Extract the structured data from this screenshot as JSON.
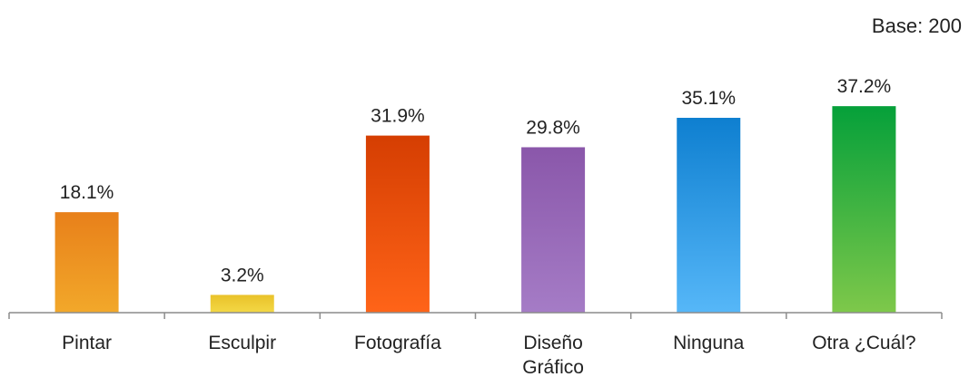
{
  "base_note": "Base: 200",
  "chart_data": {
    "type": "bar",
    "categories": [
      [
        "Pintar"
      ],
      [
        "Esculpir"
      ],
      [
        "Fotografía"
      ],
      [
        "Diseño",
        "Gráfico"
      ],
      [
        "Ninguna"
      ],
      [
        "Otra ¿Cuál?"
      ]
    ],
    "values": [
      18.1,
      3.2,
      31.9,
      29.8,
      35.1,
      37.2
    ],
    "value_labels": [
      "18.1%",
      "3.2%",
      "31.9%",
      "29.8%",
      "35.1%",
      "37.2%"
    ],
    "colors": [
      [
        "#e8801a",
        "#f2a82a"
      ],
      [
        "#e9c22a",
        "#f3d845"
      ],
      [
        "#d53e02",
        "#ff6418"
      ],
      [
        "#8a57aa",
        "#a57cc6"
      ],
      [
        "#0e7fd0",
        "#56b7f8"
      ],
      [
        "#05a03a",
        "#7ec84a"
      ]
    ],
    "title": "",
    "xlabel": "",
    "ylabel": "",
    "ylim": [
      0,
      40
    ],
    "grid": false,
    "legend": "none"
  }
}
